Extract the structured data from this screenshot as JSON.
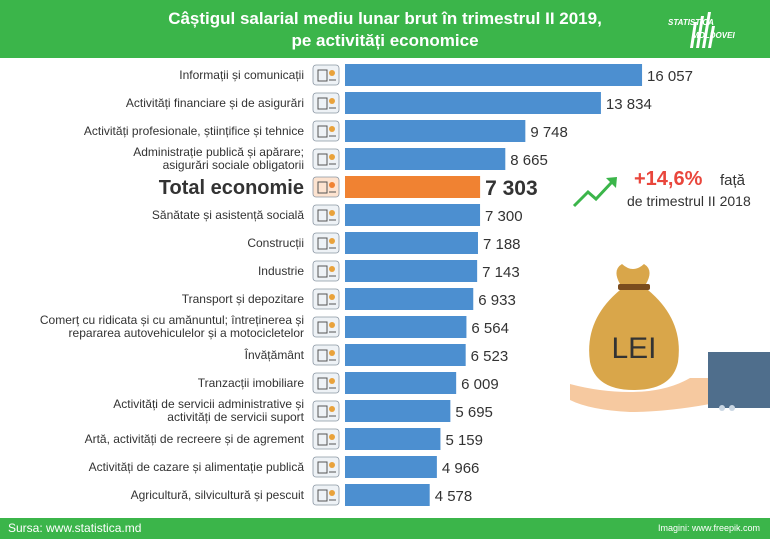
{
  "header": {
    "title_line1": "Câștigul salarial mediu lunar brut în trimestrul II 2019,",
    "title_line2": "pe activități economice",
    "brand_line1": "STATISTICA",
    "brand_line2": "MOLDOVEI"
  },
  "growth": {
    "value": "+14,6%",
    "word": "față",
    "reference": "de trimestrul II 2018"
  },
  "illustration": {
    "bag_label": "LEI"
  },
  "footer": {
    "source": "Sursa: www.statistica.md",
    "credit": "Imagini: www.freepik.com"
  },
  "colors": {
    "header_green": "#3bb54a",
    "bar_blue": "#4c8fd0",
    "total_orange": "#f08232",
    "growth_red": "#e9463c"
  },
  "chart_data": {
    "type": "bar",
    "orientation": "horizontal",
    "title": "Câștigul salarial mediu lunar brut în trimestrul II 2019, pe activități economice",
    "highlight_category": "Total economie",
    "categories": [
      {
        "label_lines": [
          "Informații și comunicații"
        ],
        "value": 16057,
        "value_label": "16 057",
        "icon": "satellite-dish-icon"
      },
      {
        "label_lines": [
          "Activități financiare și de asigurări"
        ],
        "value": 13834,
        "value_label": "13 834",
        "icon": "finance-chart-icon"
      },
      {
        "label_lines": [
          "Activități profesionale, științifice și tehnice"
        ],
        "value": 9748,
        "value_label": "9 748",
        "icon": "science-flask-icon"
      },
      {
        "label_lines": [
          "Administrație publică și apărare;",
          "asigurări sociale obligatorii"
        ],
        "value": 8665,
        "value_label": "8 665",
        "icon": "government-building-icon"
      },
      {
        "label_lines": [
          "Total economie"
        ],
        "value": 7303,
        "value_label": "7 303",
        "icon": "moldova-map-icon",
        "total": true
      },
      {
        "label_lines": [
          "Sănătate și asistență socială"
        ],
        "value": 7300,
        "value_label": "7 300",
        "icon": "hospital-icon"
      },
      {
        "label_lines": [
          "Construcții"
        ],
        "value": 7188,
        "value_label": "7 188",
        "icon": "crane-truck-icon"
      },
      {
        "label_lines": [
          "Industrie"
        ],
        "value": 7143,
        "value_label": "7 143",
        "icon": "factory-icon"
      },
      {
        "label_lines": [
          "Transport și depozitare"
        ],
        "value": 6933,
        "value_label": "6 933",
        "icon": "truck-warehouse-icon"
      },
      {
        "label_lines": [
          "Comerț cu ridicata și cu amănuntul; întreținerea și",
          "repararea autovehiculelor și a motocicletelor"
        ],
        "value": 6564,
        "value_label": "6 564",
        "icon": "shop-trade-icon"
      },
      {
        "label_lines": [
          "Învățământ"
        ],
        "value": 6523,
        "value_label": "6 523",
        "icon": "globe-education-icon"
      },
      {
        "label_lines": [
          "Tranzacții imobiliare"
        ],
        "value": 6009,
        "value_label": "6 009",
        "icon": "house-sale-icon"
      },
      {
        "label_lines": [
          "Activități de servicii administrative și",
          "activități de servicii suport"
        ],
        "value": 5695,
        "value_label": "5 695",
        "icon": "bar-stats-icon"
      },
      {
        "label_lines": [
          "Artă, activități de recreere și de agrement"
        ],
        "value": 5159,
        "value_label": "5 159",
        "icon": "paintbrush-icon"
      },
      {
        "label_lines": [
          "Activități de cazare și alimentație publică"
        ],
        "value": 4966,
        "value_label": "4 966",
        "icon": "plate-cutlery-icon"
      },
      {
        "label_lines": [
          "Agricultură, silvicultură și pescuit"
        ],
        "value": 4578,
        "value_label": "4 578",
        "icon": "wheat-fish-icon"
      }
    ]
  }
}
